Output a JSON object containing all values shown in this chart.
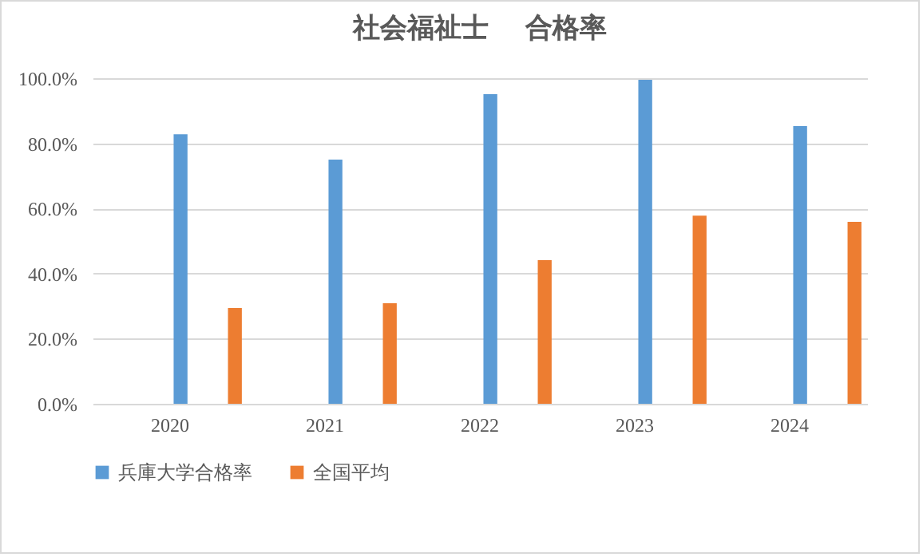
{
  "chart_data": {
    "type": "bar",
    "title": "社会福祉士　 合格率",
    "categories": [
      "2020",
      "2021",
      "2022",
      "2023",
      "2024"
    ],
    "series": [
      {
        "name": "兵庫大学合格率",
        "color": "#5b9bd5",
        "values": [
          82.8,
          75.0,
          95.1,
          99.5,
          85.3
        ]
      },
      {
        "name": "全国平均",
        "color": "#ed7d31",
        "values": [
          29.4,
          30.9,
          44.1,
          57.8,
          55.9
        ]
      }
    ],
    "ylim": [
      0,
      100
    ],
    "yticks": [
      {
        "value": 0,
        "label": "0.0%"
      },
      {
        "value": 20,
        "label": "20.0%"
      },
      {
        "value": 40,
        "label": "40.0%"
      },
      {
        "value": 60,
        "label": "60.0%"
      },
      {
        "value": 80,
        "label": "80.0%"
      },
      {
        "value": 100,
        "label": "100.0%"
      }
    ],
    "grid": "y",
    "legend": "bottom"
  }
}
